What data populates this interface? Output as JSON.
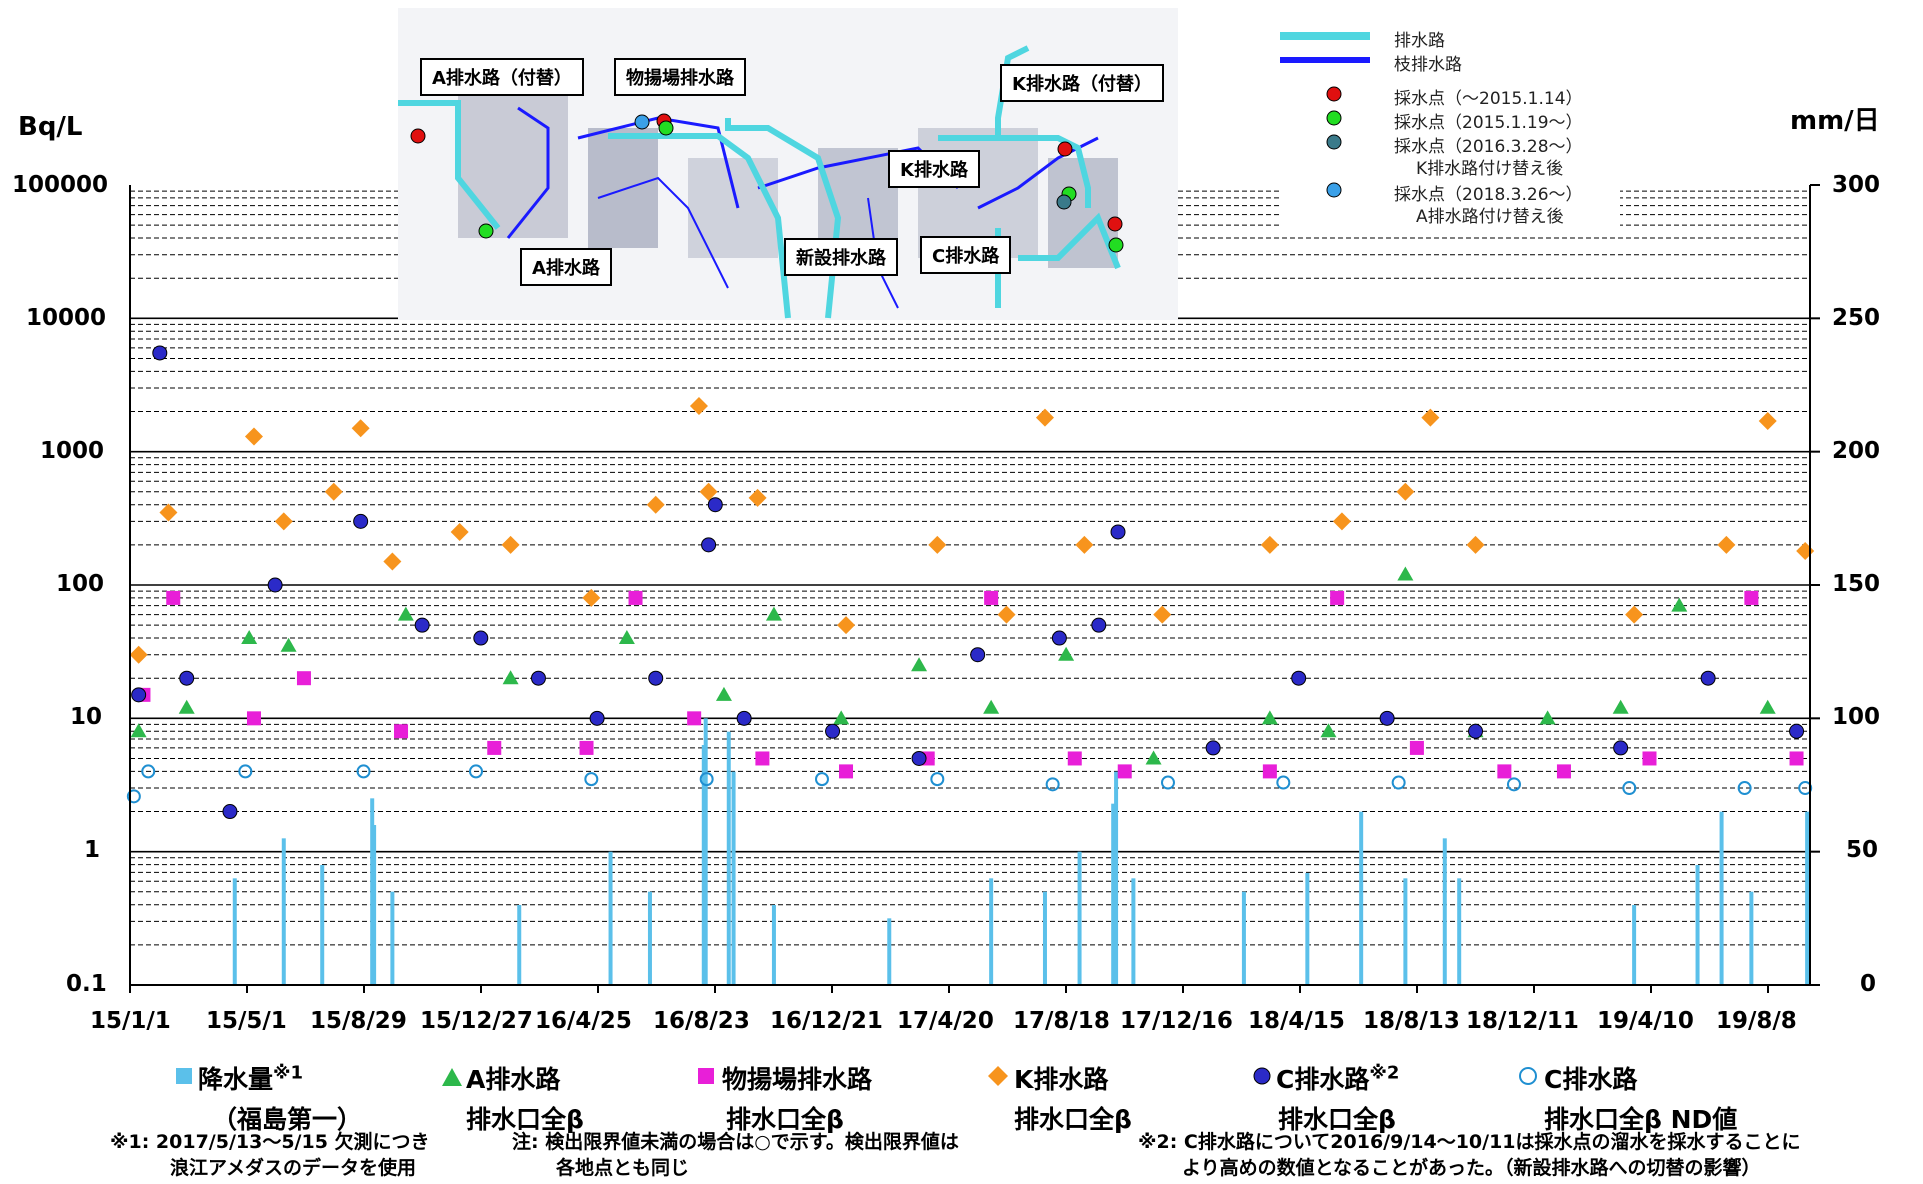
{
  "units": {
    "left": "Bq/L",
    "right": "mm/日"
  },
  "chart_data": {
    "type": "scatter",
    "title": "",
    "y_left": {
      "label": "Bq/L",
      "scale": "log",
      "range": [
        0.1,
        100000
      ],
      "ticks": [
        "100000",
        "10000",
        "1000",
        "100",
        "10",
        "1",
        "0.1"
      ]
    },
    "y_right": {
      "label": "mm/日",
      "range": [
        0,
        300
      ],
      "ticks": [
        "300",
        "250",
        "200",
        "150",
        "100",
        "50",
        "0"
      ]
    },
    "x": {
      "type": "date",
      "range": [
        "2015-01-01",
        "2019-10-15"
      ],
      "tick_labels": [
        "15/1/1",
        "15/5/1",
        "15/8/29",
        "15/12/27",
        "16/4/25",
        "16/8/23",
        "16/12/21",
        "17/4/20",
        "17/8/18",
        "17/12/16",
        "18/4/15",
        "18/8/13",
        "18/12/11",
        "19/4/10",
        "19/8/8"
      ]
    },
    "grid": true,
    "series": [
      {
        "name": "降水量",
        "type": "bar",
        "axis": "right",
        "color": "#5bc0ea",
        "points": [
          [
            "2015-04-20",
            40
          ],
          [
            "2015-06-10",
            55
          ],
          [
            "2015-07-20",
            45
          ],
          [
            "2015-09-10",
            70
          ],
          [
            "2015-09-12",
            60
          ],
          [
            "2015-10-01",
            35
          ],
          [
            "2016-02-10",
            30
          ],
          [
            "2016-05-15",
            50
          ],
          [
            "2016-06-25",
            35
          ],
          [
            "2016-08-20",
            90
          ],
          [
            "2016-08-22",
            100
          ],
          [
            "2016-09-15",
            95
          ],
          [
            "2016-09-20",
            80
          ],
          [
            "2016-11-01",
            30
          ],
          [
            "2017-03-01",
            25
          ],
          [
            "2017-06-15",
            40
          ],
          [
            "2017-08-10",
            35
          ],
          [
            "2017-09-15",
            50
          ],
          [
            "2017-10-20",
            68
          ],
          [
            "2017-10-23",
            80
          ],
          [
            "2017-11-10",
            40
          ],
          [
            "2018-03-05",
            35
          ],
          [
            "2018-05-10",
            42
          ],
          [
            "2018-07-05",
            65
          ],
          [
            "2018-08-20",
            40
          ],
          [
            "2018-09-30",
            55
          ],
          [
            "2018-10-15",
            40
          ],
          [
            "2019-04-15",
            30
          ],
          [
            "2019-06-20",
            45
          ],
          [
            "2019-07-15",
            65
          ],
          [
            "2019-08-15",
            35
          ],
          [
            "2019-10-12",
            65
          ]
        ]
      },
      {
        "name": "A排水路 排水口全β",
        "type": "scatter",
        "axis": "left",
        "color": "#2db84b",
        "marker": "triangle",
        "points": [
          [
            "2015-01-10",
            8
          ],
          [
            "2015-03-01",
            12
          ],
          [
            "2015-05-05",
            40
          ],
          [
            "2015-06-15",
            35
          ],
          [
            "2015-10-15",
            60
          ],
          [
            "2016-02-01",
            20
          ],
          [
            "2016-06-01",
            40
          ],
          [
            "2016-09-10",
            15
          ],
          [
            "2016-11-01",
            60
          ],
          [
            "2017-01-10",
            10
          ],
          [
            "2017-04-01",
            25
          ],
          [
            "2017-06-15",
            12
          ],
          [
            "2017-09-01",
            30
          ],
          [
            "2017-12-01",
            5
          ],
          [
            "2018-04-01",
            10
          ],
          [
            "2018-06-01",
            8
          ],
          [
            "2018-08-20",
            120
          ],
          [
            "2018-11-01",
            8
          ],
          [
            "2019-01-15",
            10
          ],
          [
            "2019-04-01",
            12
          ],
          [
            "2019-06-01",
            70
          ],
          [
            "2019-09-01",
            12
          ]
        ]
      },
      {
        "name": "物揚場排水路 排水口全β",
        "type": "scatter",
        "axis": "left",
        "color": "#e81fd8",
        "marker": "square",
        "points": [
          [
            "2015-01-15",
            15
          ],
          [
            "2015-02-15",
            80
          ],
          [
            "2015-05-10",
            10
          ],
          [
            "2015-07-01",
            20
          ],
          [
            "2015-10-10",
            8
          ],
          [
            "2016-01-15",
            6
          ],
          [
            "2016-04-20",
            6
          ],
          [
            "2016-06-10",
            80
          ],
          [
            "2016-08-10",
            10
          ],
          [
            "2016-10-20",
            5
          ],
          [
            "2017-01-15",
            4
          ],
          [
            "2017-04-10",
            5
          ],
          [
            "2017-06-15",
            80
          ],
          [
            "2017-09-10",
            5
          ],
          [
            "2017-11-01",
            4
          ],
          [
            "2018-04-01",
            4
          ],
          [
            "2018-06-10",
            80
          ],
          [
            "2018-09-01",
            6
          ],
          [
            "2018-12-01",
            4
          ],
          [
            "2019-02-01",
            4
          ],
          [
            "2019-05-01",
            5
          ],
          [
            "2019-08-15",
            80
          ],
          [
            "2019-10-01",
            5
          ]
        ]
      },
      {
        "name": "K排水路 排水口全β",
        "type": "scatter",
        "axis": "left",
        "color": "#f7941d",
        "marker": "diamond",
        "points": [
          [
            "2015-01-10",
            30
          ],
          [
            "2015-02-10",
            350
          ],
          [
            "2015-05-10",
            1300
          ],
          [
            "2015-06-10",
            300
          ],
          [
            "2015-08-01",
            500
          ],
          [
            "2015-08-29",
            1500
          ],
          [
            "2015-10-01",
            150
          ],
          [
            "2015-12-10",
            250
          ],
          [
            "2016-02-01",
            200
          ],
          [
            "2016-04-25",
            80
          ],
          [
            "2016-07-01",
            400
          ],
          [
            "2016-08-15",
            2200
          ],
          [
            "2016-08-25",
            500
          ],
          [
            "2016-10-15",
            450
          ],
          [
            "2017-01-15",
            50
          ],
          [
            "2017-04-20",
            200
          ],
          [
            "2017-07-01",
            60
          ],
          [
            "2017-08-10",
            1800
          ],
          [
            "2017-09-20",
            200
          ],
          [
            "2017-12-10",
            60
          ],
          [
            "2018-04-01",
            200
          ],
          [
            "2018-06-15",
            300
          ],
          [
            "2018-08-20",
            500
          ],
          [
            "2018-09-15",
            1800
          ],
          [
            "2018-11-01",
            200
          ],
          [
            "2019-04-15",
            60
          ],
          [
            "2019-07-20",
            200
          ],
          [
            "2019-09-01",
            1700
          ],
          [
            "2019-10-10",
            180
          ]
        ]
      },
      {
        "name": "C排水路 排水口全β",
        "type": "scatter",
        "axis": "left",
        "color": "#2b2ac8",
        "marker": "circle",
        "points": [
          [
            "2015-01-10",
            15
          ],
          [
            "2015-02-01",
            5500
          ],
          [
            "2015-03-01",
            20
          ],
          [
            "2015-04-15",
            2
          ],
          [
            "2015-06-01",
            100
          ],
          [
            "2015-08-29",
            300
          ],
          [
            "2015-11-01",
            50
          ],
          [
            "2016-01-01",
            40
          ],
          [
            "2016-03-01",
            20
          ],
          [
            "2016-05-01",
            10
          ],
          [
            "2016-07-01",
            20
          ],
          [
            "2016-08-25",
            200
          ],
          [
            "2016-09-01",
            400
          ],
          [
            "2016-10-01",
            10
          ],
          [
            "2017-01-01",
            8
          ],
          [
            "2017-04-01",
            5
          ],
          [
            "2017-06-01",
            30
          ],
          [
            "2017-08-25",
            40
          ],
          [
            "2017-10-05",
            50
          ],
          [
            "2017-10-25",
            250
          ],
          [
            "2018-02-01",
            6
          ],
          [
            "2018-05-01",
            20
          ],
          [
            "2018-08-01",
            10
          ],
          [
            "2018-11-01",
            8
          ],
          [
            "2019-04-01",
            6
          ],
          [
            "2019-07-01",
            20
          ],
          [
            "2019-10-01",
            8
          ]
        ]
      },
      {
        "name": "C排水路 排水口全β ND値",
        "type": "scatter",
        "axis": "left",
        "color": "#1f8fd1",
        "marker": "open-circle",
        "points": [
          [
            "2015-01-05",
            2.6
          ],
          [
            "2015-01-20",
            4
          ],
          [
            "2015-05-01",
            4
          ],
          [
            "2015-09-01",
            4
          ],
          [
            "2015-12-27",
            4
          ],
          [
            "2016-04-25",
            3.5
          ],
          [
            "2016-08-23",
            3.5
          ],
          [
            "2016-12-21",
            3.5
          ],
          [
            "2017-04-20",
            3.5
          ],
          [
            "2017-08-18",
            3.2
          ],
          [
            "2017-12-16",
            3.3
          ],
          [
            "2018-04-15",
            3.3
          ],
          [
            "2018-08-13",
            3.3
          ],
          [
            "2018-12-11",
            3.2
          ],
          [
            "2019-04-10",
            3
          ],
          [
            "2019-08-08",
            3
          ],
          [
            "2019-10-10",
            3
          ]
        ]
      }
    ]
  },
  "legend": {
    "precip": {
      "label": "降水量",
      "sup": "※1",
      "sub": "（福島第一）"
    },
    "a": {
      "label": "A排水路",
      "sub": "排水口全β"
    },
    "b": {
      "label": "物揚場排水路",
      "sub": "排水口全β"
    },
    "k": {
      "label": "K排水路",
      "sub": "排水口全β"
    },
    "c": {
      "label": "C排水路",
      "sup": "※2",
      "sub": "排水口全β"
    },
    "c_nd": {
      "label": "C排水路",
      "sub": "排水口全β ND値"
    }
  },
  "notes": {
    "n1_line1": "※1: 2017/5/13～5/15 欠測につき",
    "n1_line2": "浪江アメダスのデータを使用",
    "n2_line1": "注: 検出限界値未満の場合は○で示す。検出限界値は",
    "n2_line2": "各地点とも同じ",
    "n3_line1": "※2: C排水路について2016/9/14～10/11は採水点の溜水を採水することに",
    "n3_line2": "より高めの数値となることがあった。（新設排水路への切替の影響）"
  },
  "inset_map": {
    "labels": {
      "a_alt": "A排水路（付替）",
      "buyo": "物揚場排水路",
      "k_alt": "K排水路（付替）",
      "k": "K排水路",
      "a": "A排水路",
      "new": "新設排水路",
      "c": "C排水路"
    },
    "legend": {
      "main": "排水路",
      "branch": "枝排水路",
      "p1": "採水点（～2015.1.14）",
      "p2": "採水点（2015.1.19～）",
      "p3a": "採水点（2016.3.28～）",
      "p3b": "K排水路付け替え後",
      "p4a": "採水点（2018.3.26～）",
      "p4b": "A排水路付け替え後"
    },
    "colors": {
      "main": "#4fd6e0",
      "branch": "#1a1aff",
      "p1": "#e01010",
      "p2": "#22dd22",
      "p3": "#3a7a8a",
      "p4": "#3aa0e8"
    }
  }
}
